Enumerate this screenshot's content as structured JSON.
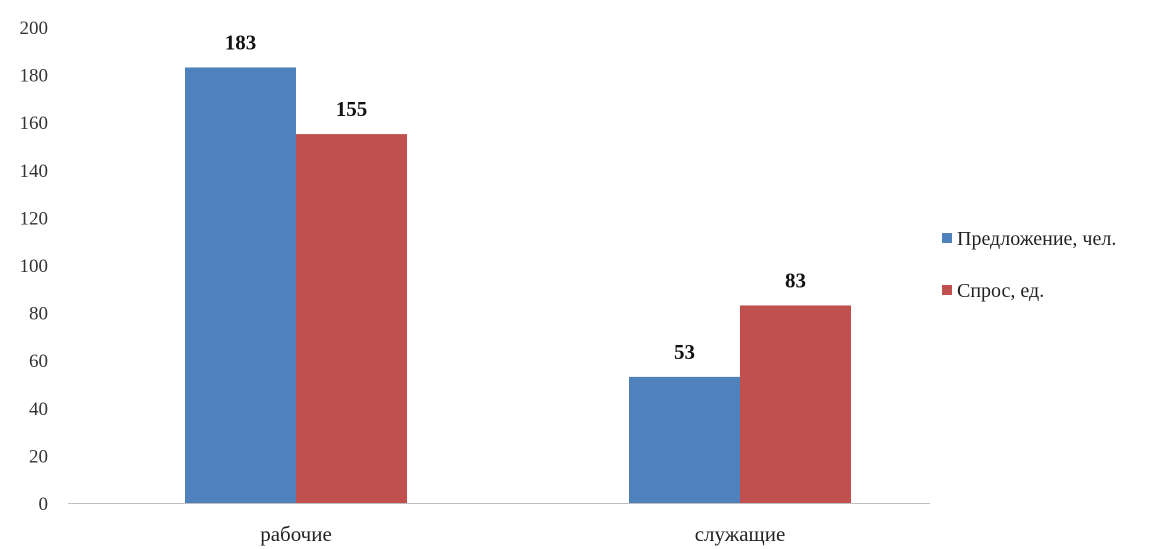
{
  "chart_data": {
    "type": "bar",
    "categories": [
      "рабочие",
      "служащие"
    ],
    "series": [
      {
        "name": "Предложение, чел.",
        "values": [
          183,
          53
        ],
        "color": "#4f81bd"
      },
      {
        "name": "Спрос, ед.",
        "values": [
          155,
          83
        ],
        "color": "#c0504d"
      }
    ],
    "y_ticks": [
      "0",
      "20",
      "40",
      "60",
      "80",
      "100",
      "120",
      "140",
      "160",
      "180",
      "200"
    ],
    "ylim": [
      0,
      200
    ],
    "grid": false,
    "legend_position": "right",
    "data_labels": true
  }
}
